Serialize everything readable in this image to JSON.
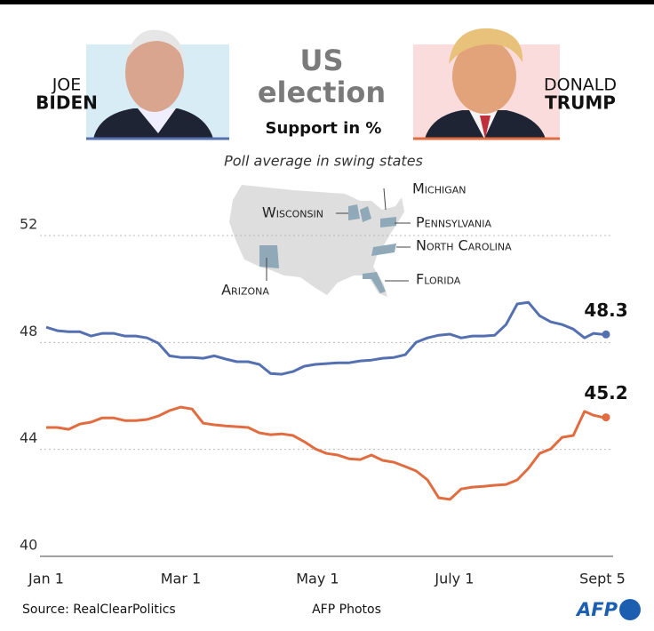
{
  "chart_data": {
    "type": "line",
    "title": "US election",
    "subtitle": "Support in %",
    "note": "Poll average in swing states",
    "map_labels": [
      "Michigan",
      "Wisconsin",
      "Pennsylvania",
      "North Carolina",
      "Arizona",
      "Florida"
    ],
    "x": [
      0,
      5,
      10,
      15,
      20,
      25,
      30,
      35,
      40,
      45,
      50,
      55,
      60,
      65,
      70,
      75,
      80,
      85,
      90,
      95,
      100,
      105,
      110,
      115,
      120,
      125,
      130,
      135,
      140,
      145,
      150,
      155,
      160,
      165,
      170,
      175,
      180,
      185,
      190,
      195,
      200,
      205,
      210,
      215,
      220,
      225,
      230,
      235,
      240,
      244,
      248
    ],
    "xlim": [
      0,
      248
    ],
    "xticks": [
      {
        "value": 0,
        "label": "Jan 1"
      },
      {
        "value": 60,
        "label": "Mar 1"
      },
      {
        "value": 121,
        "label": "May 1"
      },
      {
        "value": 182,
        "label": "July 1"
      },
      {
        "value": 248,
        "label": "Sept 5"
      }
    ],
    "ylim": [
      40,
      52
    ],
    "yticks": [
      40,
      44,
      48,
      52
    ],
    "grid": true,
    "series": [
      {
        "name": "BIDEN",
        "first_name": "JOE",
        "color": "#5470b0",
        "values": [
          48.57,
          48.44,
          48.4,
          48.4,
          48.24,
          48.34,
          48.34,
          48.24,
          48.24,
          48.17,
          47.97,
          47.5,
          47.44,
          47.44,
          47.41,
          47.5,
          47.38,
          47.28,
          47.28,
          47.18,
          46.84,
          46.81,
          46.91,
          47.11,
          47.18,
          47.21,
          47.24,
          47.24,
          47.31,
          47.34,
          47.41,
          47.44,
          47.54,
          48.01,
          48.17,
          48.27,
          48.31,
          48.17,
          48.24,
          48.24,
          48.27,
          48.67,
          49.44,
          49.5,
          49.0,
          48.77,
          48.67,
          48.5,
          48.17,
          48.34,
          48.3
        ]
      },
      {
        "name": "TRUMP",
        "first_name": "DONALD",
        "color": "#e06c3f",
        "values": [
          44.82,
          44.82,
          44.75,
          44.95,
          45.02,
          45.18,
          45.18,
          45.08,
          45.08,
          45.12,
          45.25,
          45.45,
          45.58,
          45.51,
          44.98,
          44.92,
          44.88,
          44.85,
          44.82,
          44.62,
          44.55,
          44.58,
          44.52,
          44.29,
          44.02,
          43.85,
          43.79,
          43.65,
          43.62,
          43.79,
          43.59,
          43.52,
          43.36,
          43.19,
          42.86,
          42.19,
          42.13,
          42.52,
          42.59,
          42.62,
          42.66,
          42.69,
          42.86,
          43.29,
          43.85,
          44.02,
          44.45,
          44.52,
          45.42,
          45.28,
          45.2
        ]
      }
    ],
    "source": "Source: RealClearPolitics",
    "credit": "AFP Photos",
    "logo": "AFP"
  }
}
